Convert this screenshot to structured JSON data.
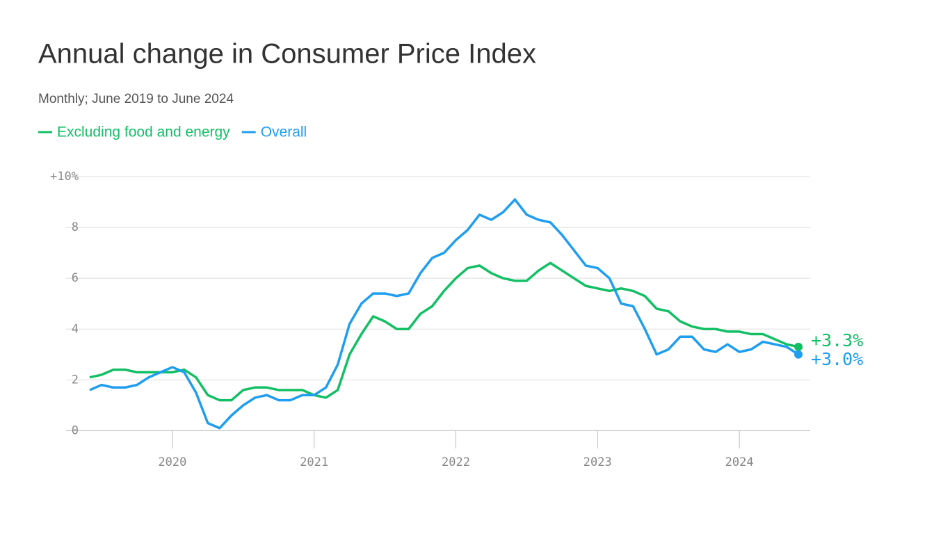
{
  "chart_data": {
    "type": "line",
    "title": "Annual change in Consumer Price Index",
    "subtitle": "Monthly; June 2019 to June 2024",
    "x": [
      "2019-06",
      "2019-07",
      "2019-08",
      "2019-09",
      "2019-10",
      "2019-11",
      "2019-12",
      "2020-01",
      "2020-02",
      "2020-03",
      "2020-04",
      "2020-05",
      "2020-06",
      "2020-07",
      "2020-08",
      "2020-09",
      "2020-10",
      "2020-11",
      "2020-12",
      "2021-01",
      "2021-02",
      "2021-03",
      "2021-04",
      "2021-05",
      "2021-06",
      "2021-07",
      "2021-08",
      "2021-09",
      "2021-10",
      "2021-11",
      "2021-12",
      "2022-01",
      "2022-02",
      "2022-03",
      "2022-04",
      "2022-05",
      "2022-06",
      "2022-07",
      "2022-08",
      "2022-09",
      "2022-10",
      "2022-11",
      "2022-12",
      "2023-01",
      "2023-02",
      "2023-03",
      "2023-04",
      "2023-05",
      "2023-06",
      "2023-07",
      "2023-08",
      "2023-09",
      "2023-10",
      "2023-11",
      "2023-12",
      "2024-01",
      "2024-02",
      "2024-03",
      "2024-04",
      "2024-05",
      "2024-06"
    ],
    "series": [
      {
        "name": "Excluding food and energy",
        "color": "#12bf64",
        "values": [
          2.1,
          2.2,
          2.4,
          2.4,
          2.3,
          2.3,
          2.3,
          2.3,
          2.4,
          2.1,
          1.4,
          1.2,
          1.2,
          1.6,
          1.7,
          1.7,
          1.6,
          1.6,
          1.6,
          1.4,
          1.3,
          1.6,
          3.0,
          3.8,
          4.5,
          4.3,
          4.0,
          4.0,
          4.6,
          4.9,
          5.5,
          6.0,
          6.4,
          6.5,
          6.2,
          6.0,
          5.9,
          5.9,
          6.3,
          6.6,
          6.3,
          6.0,
          5.7,
          5.6,
          5.5,
          5.6,
          5.5,
          5.3,
          4.8,
          4.7,
          4.3,
          4.1,
          4.0,
          4.0,
          3.9,
          3.9,
          3.8,
          3.8,
          3.6,
          3.4,
          3.3
        ],
        "value_labels": [
          null,
          null,
          null,
          null,
          null,
          null,
          null,
          null,
          null,
          null,
          null,
          null,
          null,
          null,
          null,
          null,
          null,
          null,
          null,
          null,
          null,
          null,
          null,
          null,
          null,
          null,
          null,
          null,
          null,
          null,
          null,
          null,
          null,
          null,
          null,
          null,
          null,
          null,
          null,
          null,
          null,
          null,
          null,
          null,
          null,
          null,
          null,
          null,
          null,
          null,
          null,
          null,
          null,
          null,
          null,
          null,
          null,
          null,
          null,
          null,
          "+3.3%"
        ]
      },
      {
        "name": "Overall",
        "color": "#1f9ef0",
        "values": [
          1.6,
          1.8,
          1.7,
          1.7,
          1.8,
          2.1,
          2.3,
          2.5,
          2.3,
          1.5,
          0.3,
          0.1,
          0.6,
          1.0,
          1.3,
          1.4,
          1.2,
          1.2,
          1.4,
          1.4,
          1.7,
          2.6,
          4.2,
          5.0,
          5.4,
          5.4,
          5.3,
          5.4,
          6.2,
          6.8,
          7.0,
          7.5,
          7.9,
          8.5,
          8.3,
          8.6,
          9.1,
          8.5,
          8.3,
          8.2,
          7.7,
          7.1,
          6.5,
          6.4,
          6.0,
          5.0,
          4.9,
          4.0,
          3.0,
          3.2,
          3.7,
          3.7,
          3.2,
          3.1,
          3.4,
          3.1,
          3.2,
          3.5,
          3.4,
          3.3,
          3.0
        ],
        "value_labels": [
          null,
          null,
          null,
          null,
          null,
          null,
          null,
          null,
          null,
          null,
          null,
          null,
          null,
          null,
          null,
          null,
          null,
          null,
          null,
          null,
          null,
          null,
          null,
          null,
          null,
          null,
          null,
          null,
          null,
          null,
          null,
          null,
          null,
          null,
          null,
          null,
          null,
          null,
          null,
          null,
          null,
          null,
          null,
          null,
          null,
          null,
          null,
          null,
          null,
          null,
          null,
          null,
          null,
          null,
          null,
          null,
          null,
          null,
          null,
          null,
          "+3.0%"
        ]
      }
    ],
    "xlim": [
      "2019-04",
      "2024-07"
    ],
    "xticks": [
      {
        "value": "2020-01",
        "label": "2020"
      },
      {
        "value": "2021-01",
        "label": "2021"
      },
      {
        "value": "2022-01",
        "label": "2022"
      },
      {
        "value": "2023-01",
        "label": "2023"
      },
      {
        "value": "2024-01",
        "label": "2024"
      }
    ],
    "ylim": [
      -0.7,
      10
    ],
    "yticks": [
      0,
      2,
      4,
      6,
      8,
      {
        "value": 10,
        "label": "+10%"
      }
    ],
    "grid": true
  }
}
